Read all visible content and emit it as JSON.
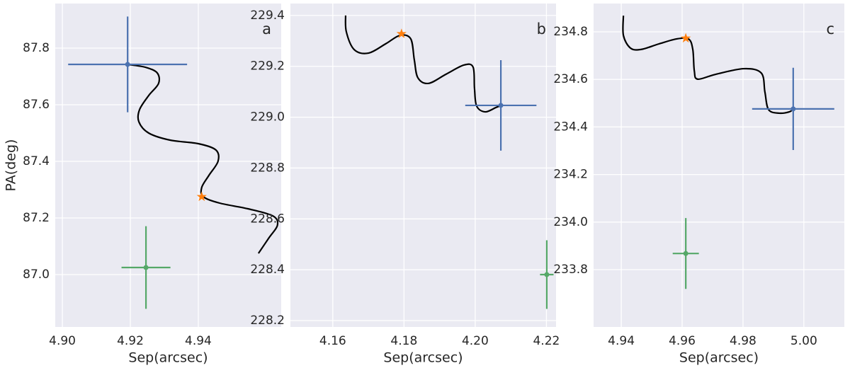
{
  "chart_data": [
    {
      "type": "scatter",
      "annotation": "a",
      "xlabel": "Sep(arcsec)",
      "ylabel": "PA(deg)",
      "xlim": [
        4.8979,
        4.9644
      ],
      "ylim": [
        86.815,
        87.9575
      ],
      "xticks": [
        {
          "value": 4.9,
          "label": "4.90"
        },
        4.92,
        4.94
      ],
      "yticks": [
        {
          "value": 87,
          "label": "87.0"
        },
        87.2,
        87.4,
        87.6,
        87.8
      ],
      "grid": true,
      "series": [
        {
          "color": "#000000",
          "marker": "none",
          "x": [
            4.9192,
            4.9244,
            4.9279,
            4.9283,
            4.9254,
            4.9227,
            4.9225,
            4.9254,
            4.9317,
            4.94,
            4.9452,
            4.9458,
            4.9431,
            4.941,
            4.9415,
            4.9463,
            4.9546,
            4.9619,
            4.9633,
            4.9608,
            4.9577
          ],
          "values": [
            87.7425,
            87.7325,
            87.7125,
            87.675,
            87.6325,
            87.5825,
            87.54,
            87.5,
            87.475,
            87.4625,
            87.44,
            87.4,
            87.35,
            87.3075,
            87.275,
            87.2525,
            87.2325,
            87.2075,
            87.175,
            87.13,
            87.075
          ]
        },
        {
          "color": "#ff7f0e",
          "marker": "star",
          "x": [
            4.941
          ],
          "values": [
            87.275
          ]
        },
        {
          "color": "#4c72b0",
          "marker": "errorbar",
          "x": [
            4.9192
          ],
          "values": [
            87.7425
          ],
          "xerr": [
            0.0175
          ],
          "yerr": [
            0.169
          ]
        },
        {
          "color": "#55a868",
          "marker": "errorbar",
          "x": [
            4.9246
          ],
          "values": [
            87.025
          ],
          "xerr": [
            0.0072
          ],
          "yerr": [
            0.146
          ]
        }
      ]
    },
    {
      "type": "scatter",
      "annotation": "b",
      "xlabel": "Sep(arcsec)",
      "xlim": [
        4.1481,
        4.2227
      ],
      "ylim": [
        228.175,
        229.447
      ],
      "xticks": [
        4.16,
        4.18,
        {
          "value": 4.2,
          "label": "4.20"
        },
        4.22
      ],
      "yticks": [
        228.2,
        228.4,
        228.6,
        228.8,
        {
          "value": 229,
          "label": "229.0"
        },
        229.2,
        229.4
      ],
      "grid": true,
      "series": [
        {
          "color": "#000000",
          "marker": "none",
          "x": [
            4.1636,
            4.1638,
            4.166,
            4.17,
            4.1749,
            4.1789,
            4.1819,
            4.1829,
            4.1839,
            4.1869,
            4.1918,
            4.1968,
            4.1994,
            4.1998,
            4.2004,
            4.2028,
            4.2058,
            4.2072
          ],
          "values": [
            229.4,
            229.336,
            229.266,
            229.252,
            229.289,
            229.322,
            229.308,
            229.225,
            229.155,
            229.133,
            229.169,
            229.205,
            229.197,
            229.113,
            229.044,
            229.021,
            229.038,
            229.046
          ]
        },
        {
          "color": "#ff7f0e",
          "marker": "star",
          "x": [
            4.1793
          ],
          "values": [
            229.328
          ]
        },
        {
          "color": "#4c72b0",
          "marker": "errorbar",
          "x": [
            4.2072
          ],
          "values": [
            229.0464
          ],
          "xerr": [
            0.01
          ],
          "yerr": [
            0.178
          ]
        },
        {
          "color": "#55a868",
          "marker": "errorbar",
          "x": [
            4.2201
          ],
          "values": [
            228.381
          ],
          "xerr": [
            0.0019
          ],
          "yerr": [
            0.135
          ]
        }
      ]
    },
    {
      "type": "scatter",
      "annotation": "c",
      "xlabel": "Sep(arcsec)",
      "xlim": [
        4.9309,
        5.0133
      ],
      "ylim": [
        233.559,
        234.919
      ],
      "xticks": [
        4.94,
        4.96,
        4.98,
        {
          "value": 5,
          "label": "5.00"
        }
      ],
      "yticks": [
        233.8,
        {
          "value": 234,
          "label": "234.0"
        },
        234.2,
        234.4,
        234.6,
        234.8
      ],
      "grid": true,
      "series": [
        {
          "color": "#000000",
          "marker": "none",
          "x": [
            4.9407,
            4.9407,
            4.943,
            4.9465,
            4.9523,
            4.9581,
            4.9621,
            4.9635,
            4.964,
            4.9651,
            4.9709,
            4.9802,
            4.986,
            4.9872,
            4.9884,
            4.9919,
            4.9953,
            4.9965
          ],
          "values": [
            234.868,
            234.785,
            234.732,
            234.726,
            234.749,
            234.77,
            234.77,
            234.726,
            234.636,
            234.601,
            234.621,
            234.645,
            234.627,
            234.547,
            234.473,
            234.458,
            234.464,
            234.476
          ]
        },
        {
          "color": "#ff7f0e",
          "marker": "star",
          "x": [
            4.9612
          ],
          "values": [
            234.773
          ]
        },
        {
          "color": "#4c72b0",
          "marker": "errorbar",
          "x": [
            4.9965
          ],
          "values": [
            234.476
          ],
          "xerr": [
            0.0135
          ],
          "yerr": [
            0.173
          ]
        },
        {
          "color": "#55a868",
          "marker": "errorbar",
          "x": [
            4.9612
          ],
          "values": [
            233.868
          ],
          "xerr": [
            0.0043
          ],
          "yerr": [
            0.149
          ]
        }
      ]
    }
  ]
}
